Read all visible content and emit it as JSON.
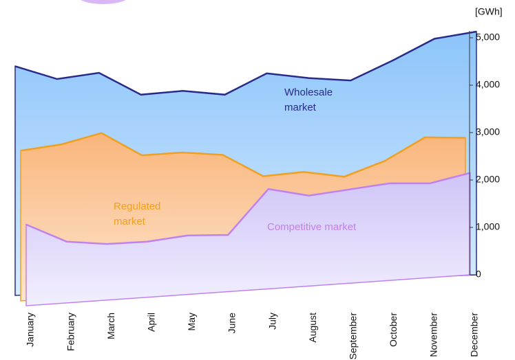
{
  "chart_data": {
    "type": "area",
    "unit_label": "[GWh]",
    "categories": [
      "January",
      "February",
      "March",
      "April",
      "May",
      "June",
      "July",
      "August",
      "September",
      "October",
      "November",
      "December"
    ],
    "series": [
      {
        "name": "Wholesale market",
        "color": "#2a2a8a",
        "fill": "#9cc8f5",
        "values": [
          4400,
          4130,
          4260,
          3800,
          3880,
          3800,
          4250,
          4150,
          4100,
          4520,
          4980,
          5130
        ]
      },
      {
        "name": "Regulated market",
        "color": "#f0a020",
        "fill": "#fcc89a",
        "values": [
          2620,
          2750,
          2990,
          2520,
          2580,
          2530,
          2080,
          2170,
          2070,
          2400,
          2900,
          2890
        ]
      },
      {
        "name": "Competitive market",
        "color": "#c080f0",
        "fill": "#dcd4fa",
        "values": [
          1060,
          700,
          650,
          700,
          830,
          840,
          1810,
          1670,
          1800,
          1930,
          1930,
          2150
        ]
      }
    ],
    "ylim": [
      0,
      5000
    ],
    "yticks": [
      {
        "value": 0,
        "label": "0"
      },
      {
        "value": 1000,
        "label": "1,000"
      },
      {
        "value": 2000,
        "label": "2,000"
      },
      {
        "value": 3000,
        "label": "3,000"
      },
      {
        "value": 4000,
        "label": "4,000"
      },
      {
        "value": 5000,
        "label": "5,000"
      }
    ]
  }
}
